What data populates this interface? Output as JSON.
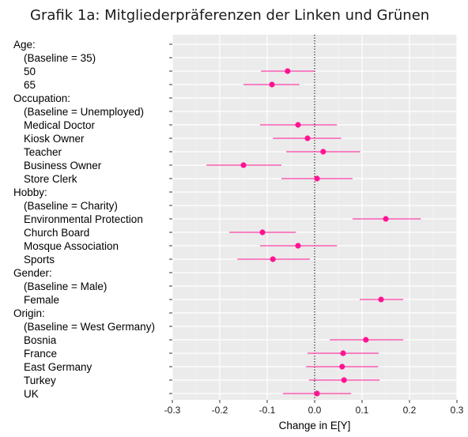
{
  "chart_data": {
    "type": "scatter",
    "title": "Grafik 1a: Mitgliederpräferenzen der Linken und Grünen",
    "xlabel": "Change in E[Y]",
    "ylabel": "",
    "xlim": [
      -0.3,
      0.3
    ],
    "x_ticks": [
      "-0.3",
      "-0.2",
      "-0.1",
      "0.0",
      "0.1",
      "0.2",
      "0.3"
    ],
    "grid": true,
    "reference_line": 0,
    "point_color": "#ff1493",
    "rows": [
      {
        "label": "Age:",
        "estimate": null,
        "lower": null,
        "upper": null
      },
      {
        "label": "(Baseline = 35)",
        "estimate": null,
        "lower": null,
        "upper": null
      },
      {
        "label": "50",
        "estimate": -0.057,
        "lower": -0.113,
        "upper": 0.0
      },
      {
        "label": "65",
        "estimate": -0.09,
        "lower": -0.15,
        "upper": -0.032
      },
      {
        "label": "Occupation:",
        "estimate": null,
        "lower": null,
        "upper": null
      },
      {
        "label": "(Baseline = Unemployed)",
        "estimate": null,
        "lower": null,
        "upper": null
      },
      {
        "label": "Medical Doctor",
        "estimate": -0.035,
        "lower": -0.115,
        "upper": 0.047
      },
      {
        "label": "Kiosk Owner",
        "estimate": -0.015,
        "lower": -0.088,
        "upper": 0.056
      },
      {
        "label": "Teacher",
        "estimate": 0.018,
        "lower": -0.06,
        "upper": 0.096
      },
      {
        "label": "Business Owner",
        "estimate": -0.15,
        "lower": -0.228,
        "upper": -0.07
      },
      {
        "label": "Store Clerk",
        "estimate": 0.005,
        "lower": -0.07,
        "upper": 0.08
      },
      {
        "label": "Hobby:",
        "estimate": null,
        "lower": null,
        "upper": null
      },
      {
        "label": "(Baseline = Charity)",
        "estimate": null,
        "lower": null,
        "upper": null
      },
      {
        "label": "Environmental Protection",
        "estimate": 0.15,
        "lower": 0.08,
        "upper": 0.224
      },
      {
        "label": "Church Board",
        "estimate": -0.11,
        "lower": -0.18,
        "upper": -0.04
      },
      {
        "label": "Mosque Association",
        "estimate": -0.035,
        "lower": -0.115,
        "upper": 0.047
      },
      {
        "label": "Sports",
        "estimate": -0.088,
        "lower": -0.163,
        "upper": -0.01
      },
      {
        "label": "Gender:",
        "estimate": null,
        "lower": null,
        "upper": null
      },
      {
        "label": "(Baseline = Male)",
        "estimate": null,
        "lower": null,
        "upper": null
      },
      {
        "label": "Female",
        "estimate": 0.14,
        "lower": 0.095,
        "upper": 0.187
      },
      {
        "label": "Origin:",
        "estimate": null,
        "lower": null,
        "upper": null
      },
      {
        "label": "(Baseline = West Germany)",
        "estimate": null,
        "lower": null,
        "upper": null
      },
      {
        "label": "Bosnia",
        "estimate": 0.108,
        "lower": 0.032,
        "upper": 0.187
      },
      {
        "label": "France",
        "estimate": 0.06,
        "lower": -0.015,
        "upper": 0.135
      },
      {
        "label": "East Germany",
        "estimate": 0.058,
        "lower": -0.018,
        "upper": 0.134
      },
      {
        "label": "Turkey",
        "estimate": 0.062,
        "lower": -0.012,
        "upper": 0.137
      },
      {
        "label": "UK",
        "estimate": 0.005,
        "lower": -0.067,
        "upper": 0.077
      }
    ]
  }
}
